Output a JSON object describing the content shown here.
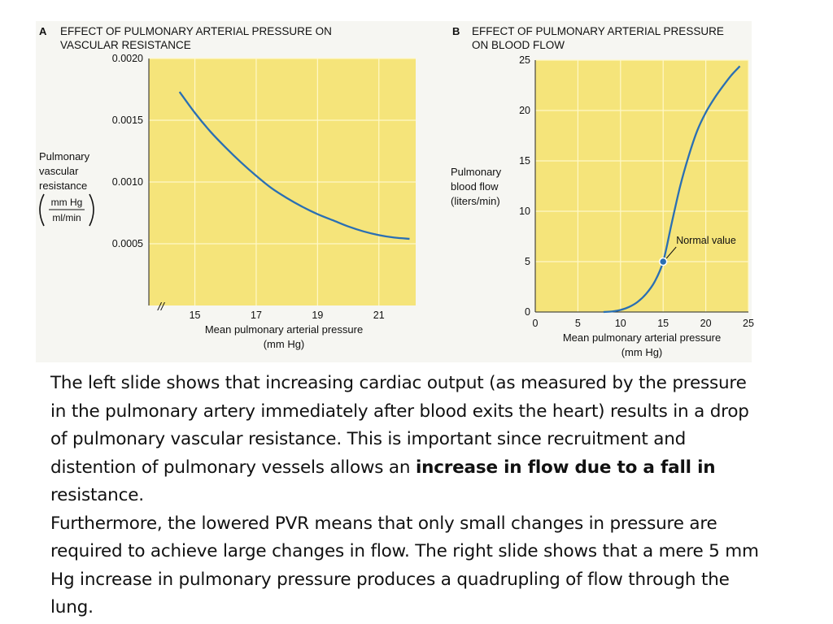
{
  "colors": {
    "plot_bg": "#f5e47a",
    "grid": "#fff8c8",
    "curve": "#2a6fb3",
    "text": "#111111"
  },
  "chart_data": [
    {
      "type": "line",
      "panel_letter": "A",
      "title_line1": "EFFECT OF PULMONARY ARTERIAL PRESSURE ON",
      "title_line2": "VASCULAR RESISTANCE",
      "ylabel_lines": [
        "Pulmonary",
        "vascular",
        "resistance"
      ],
      "ylabel_unit_num": "mm Hg",
      "ylabel_unit_den": "ml/min",
      "xlabel_line1": "Mean pulmonary arterial pressure",
      "xlabel_line2": "(mm Hg)",
      "xlim": [
        13.5,
        22.2
      ],
      "ylim": [
        0,
        0.002
      ],
      "xticks": [
        15,
        17,
        19,
        21
      ],
      "xtick_labels": [
        "15",
        "17",
        "19",
        "21"
      ],
      "yticks": [
        0.0005,
        0.001,
        0.0015,
        0.002
      ],
      "ytick_labels": [
        "0.0005",
        "0.0010",
        "0.0015",
        "0.0020"
      ],
      "axis_break": "//",
      "series": [
        {
          "name": "PVR",
          "x": [
            14.5,
            15,
            15.5,
            16,
            16.5,
            17,
            17.5,
            18,
            18.5,
            19,
            19.5,
            20,
            20.5,
            21,
            21.5,
            22
          ],
          "y": [
            0.00173,
            0.00156,
            0.00141,
            0.00128,
            0.00116,
            0.00105,
            0.00095,
            0.00087,
            0.0008,
            0.00074,
            0.00069,
            0.00064,
            0.0006,
            0.00057,
            0.00055,
            0.00054
          ]
        }
      ]
    },
    {
      "type": "line",
      "panel_letter": "B",
      "title_line1": "EFFECT OF PULMONARY ARTERIAL PRESSURE",
      "title_line2": "ON BLOOD FLOW",
      "ylabel_lines": [
        "Pulmonary",
        "blood flow",
        "(liters/min)"
      ],
      "xlabel_line1": "Mean pulmonary arterial pressure",
      "xlabel_line2": "(mm Hg)",
      "xlim": [
        0,
        25
      ],
      "ylim": [
        0,
        25
      ],
      "xticks": [
        0,
        5,
        10,
        15,
        20,
        25
      ],
      "xtick_labels": [
        "0",
        "5",
        "10",
        "15",
        "20",
        "25"
      ],
      "yticks": [
        0,
        5,
        10,
        15,
        20,
        25
      ],
      "ytick_labels": [
        "0",
        "5",
        "10",
        "15",
        "20",
        "25"
      ],
      "annotation": {
        "text": "Normal value",
        "x": 15,
        "y": 5
      },
      "series": [
        {
          "name": "Flow",
          "x": [
            8,
            9,
            10,
            11,
            12,
            13,
            14,
            15,
            16,
            17,
            18,
            19,
            20,
            21,
            22,
            23,
            24
          ],
          "y": [
            0,
            0.05,
            0.2,
            0.5,
            1.0,
            1.8,
            3.0,
            5.0,
            8.8,
            12.5,
            15.5,
            18.0,
            19.8,
            21.2,
            22.4,
            23.5,
            24.4
          ]
        }
      ]
    }
  ],
  "caption": {
    "p1_start": "The left slide shows that increasing cardiac output (as measured by the pressure in the pulmonary artery immediately after blood exits the heart) results in a drop of pulmonary vascular resistance. This is important since recruitment and distention of pulmonary vessels allows an ",
    "p1_bold": "increase in flow due to a fall in",
    "p1_end": " resistance.",
    "p2": " Furthermore, the lowered PVR means that only small changes in pressure are required to achieve large changes in flow. The right slide shows that a mere 5 mm Hg increase in pulmonary pressure produces a quadrupling of flow through the lung."
  }
}
